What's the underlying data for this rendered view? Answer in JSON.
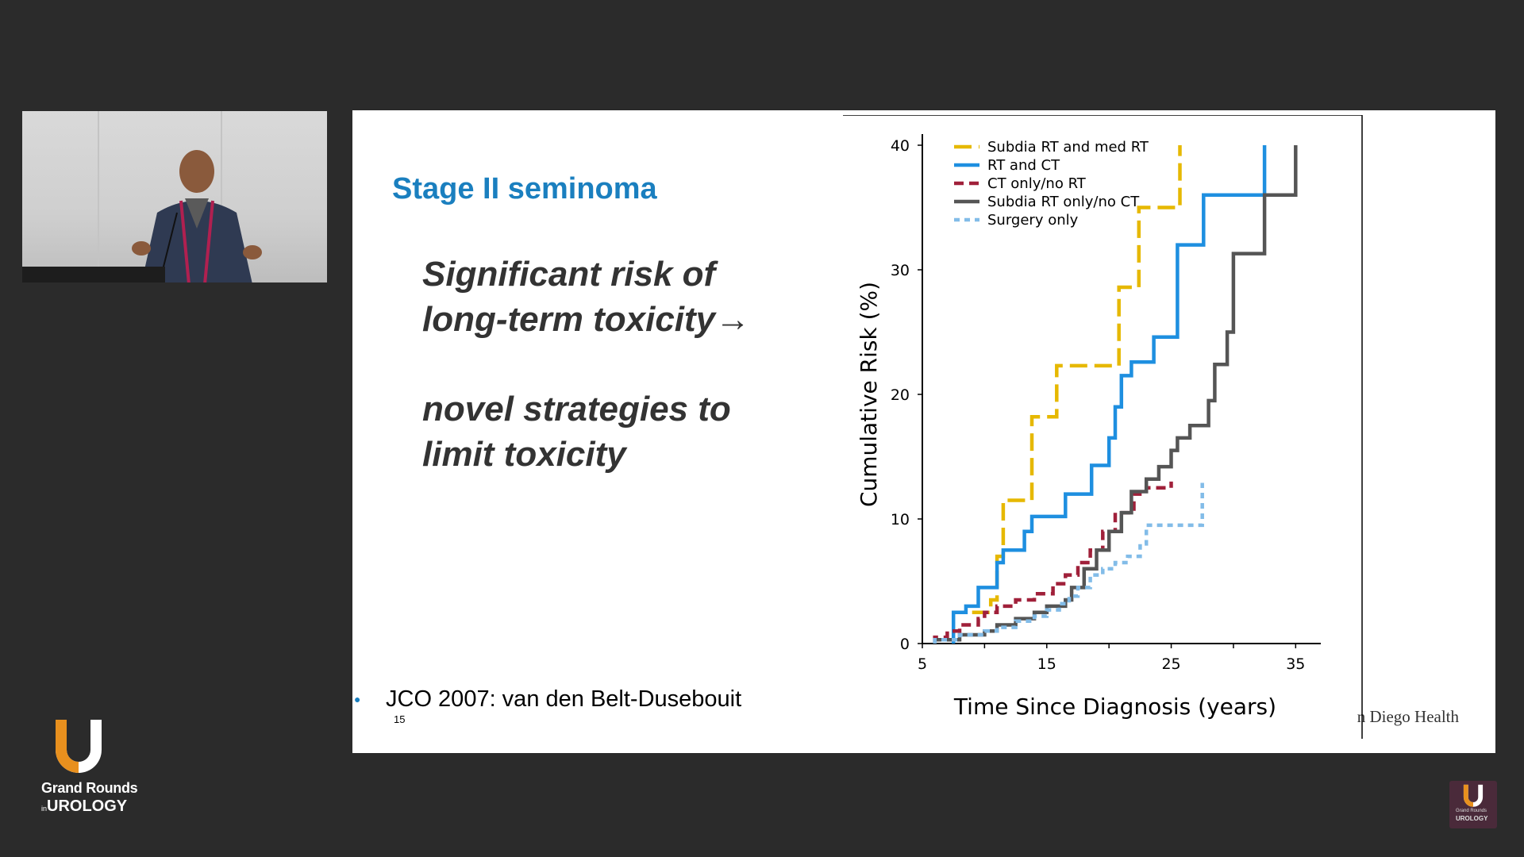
{
  "slide": {
    "title": "Stage II seminoma",
    "bullets": [
      "Significant risk of\nlong-term toxicity→",
      "novel strategies to\nlimit toxicity"
    ],
    "citation": "JCO 2007: van den Belt-Dusebouit",
    "page_number": "15",
    "institution_logo_text": "n Diego Health"
  },
  "branding": {
    "logo_line1": "Grand Rounds",
    "logo_line2_prefix": "in",
    "logo_line2": "UROLOGY",
    "mini_line1": "Grand Rounds",
    "mini_line2": "UROLOGY",
    "orange": "#e8901e",
    "white": "#ffffff"
  },
  "chart_data": {
    "type": "line",
    "step": true,
    "xlabel": "Time Since Diagnosis (years)",
    "ylabel": "Cumulative Risk (%)",
    "xlim": [
      5,
      36
    ],
    "ylim": [
      0,
      40
    ],
    "xticks": [
      5,
      15,
      25,
      35
    ],
    "yticks": [
      0,
      10,
      20,
      30,
      40
    ],
    "legend_position": "top-left",
    "series": [
      {
        "name": "Subdia RT and med RT",
        "color": "#e6b800",
        "style": "dashed-long",
        "points": [
          [
            9,
            2.5
          ],
          [
            10.5,
            2.5
          ],
          [
            10.5,
            3.5
          ],
          [
            11,
            3.5
          ],
          [
            11,
            7
          ],
          [
            11.5,
            7
          ],
          [
            11.5,
            11.5
          ],
          [
            13.8,
            11.5
          ],
          [
            13.8,
            18.2
          ],
          [
            15.8,
            18.2
          ],
          [
            15.8,
            22.3
          ],
          [
            20.8,
            22.3
          ],
          [
            20.8,
            28.6
          ],
          [
            22.4,
            28.6
          ],
          [
            22.4,
            35
          ],
          [
            25.7,
            35
          ],
          [
            25.7,
            40
          ]
        ]
      },
      {
        "name": "RT and CT",
        "color": "#1e8fe0",
        "style": "solid",
        "points": [
          [
            7.5,
            0
          ],
          [
            7.5,
            2.5
          ],
          [
            8.5,
            2.5
          ],
          [
            8.5,
            3
          ],
          [
            9.5,
            3
          ],
          [
            9.5,
            4.5
          ],
          [
            11,
            4.5
          ],
          [
            11,
            6.5
          ],
          [
            11.5,
            6.5
          ],
          [
            11.5,
            7.5
          ],
          [
            13.2,
            7.5
          ],
          [
            13.2,
            9
          ],
          [
            13.8,
            9
          ],
          [
            13.8,
            10.2
          ],
          [
            16.5,
            10.2
          ],
          [
            16.5,
            12
          ],
          [
            18.6,
            12
          ],
          [
            18.6,
            14.3
          ],
          [
            20,
            14.3
          ],
          [
            20,
            16.5
          ],
          [
            20.5,
            16.5
          ],
          [
            20.5,
            19
          ],
          [
            21,
            19
          ],
          [
            21,
            21.5
          ],
          [
            21.8,
            21.5
          ],
          [
            21.8,
            22.6
          ],
          [
            23.6,
            22.6
          ],
          [
            23.6,
            24.6
          ],
          [
            25.5,
            24.6
          ],
          [
            25.5,
            32
          ],
          [
            27.6,
            32
          ],
          [
            27.6,
            36
          ],
          [
            32.5,
            36
          ],
          [
            32.5,
            40
          ]
        ]
      },
      {
        "name": "CT only/no RT",
        "color": "#a0203a",
        "style": "dashed",
        "points": [
          [
            6,
            0
          ],
          [
            6,
            0.5
          ],
          [
            7,
            0.5
          ],
          [
            7,
            1
          ],
          [
            8,
            1
          ],
          [
            8,
            1.5
          ],
          [
            9.5,
            1.5
          ],
          [
            9.5,
            2
          ],
          [
            10,
            2
          ],
          [
            10,
            2.5
          ],
          [
            11,
            2.5
          ],
          [
            11,
            3
          ],
          [
            12.5,
            3
          ],
          [
            12.5,
            3.5
          ],
          [
            14,
            3.5
          ],
          [
            14,
            4
          ],
          [
            15.5,
            4
          ],
          [
            15.5,
            4.8
          ],
          [
            16.5,
            4.8
          ],
          [
            16.5,
            5.5
          ],
          [
            17.5,
            5.5
          ],
          [
            17.5,
            6.5
          ],
          [
            18.5,
            6.5
          ],
          [
            18.5,
            7.5
          ],
          [
            19.5,
            7.5
          ],
          [
            19.5,
            9
          ],
          [
            20.5,
            9
          ],
          [
            20.5,
            10.5
          ],
          [
            22,
            10.5
          ],
          [
            22,
            12
          ],
          [
            23,
            12
          ],
          [
            23,
            12.5
          ],
          [
            25,
            12.5
          ],
          [
            25,
            13
          ]
        ]
      },
      {
        "name": "Subdia RT only/no CT",
        "color": "#555555",
        "style": "solid",
        "points": [
          [
            6,
            0
          ],
          [
            6,
            0.3
          ],
          [
            8,
            0.3
          ],
          [
            8,
            0.7
          ],
          [
            10,
            0.7
          ],
          [
            10,
            1
          ],
          [
            11,
            1
          ],
          [
            11,
            1.5
          ],
          [
            12.5,
            1.5
          ],
          [
            12.5,
            2
          ],
          [
            14,
            2
          ],
          [
            14,
            2.5
          ],
          [
            15,
            2.5
          ],
          [
            15,
            3
          ],
          [
            16.5,
            3
          ],
          [
            16.5,
            3.5
          ],
          [
            17,
            3.5
          ],
          [
            17,
            4.5
          ],
          [
            18,
            4.5
          ],
          [
            18,
            6
          ],
          [
            19,
            6
          ],
          [
            19,
            7.5
          ],
          [
            20,
            7.5
          ],
          [
            20,
            9
          ],
          [
            21,
            9
          ],
          [
            21,
            10.5
          ],
          [
            21.8,
            10.5
          ],
          [
            21.8,
            12.2
          ],
          [
            23,
            12.2
          ],
          [
            23,
            13.2
          ],
          [
            24,
            13.2
          ],
          [
            24,
            14.2
          ],
          [
            25,
            14.2
          ],
          [
            25,
            15.5
          ],
          [
            25.5,
            15.5
          ],
          [
            25.5,
            16.5
          ],
          [
            26.5,
            16.5
          ],
          [
            26.5,
            17.5
          ],
          [
            28,
            17.5
          ],
          [
            28,
            19.5
          ],
          [
            28.5,
            19.5
          ],
          [
            28.5,
            22.4
          ],
          [
            29.5,
            22.4
          ],
          [
            29.5,
            25
          ],
          [
            30,
            25
          ],
          [
            30,
            31.3
          ],
          [
            32.5,
            31.3
          ],
          [
            32.5,
            36
          ],
          [
            35,
            36
          ],
          [
            35,
            40
          ]
        ]
      },
      {
        "name": "Surgery only",
        "color": "#82bce8",
        "style": "dotted",
        "points": [
          [
            6,
            0
          ],
          [
            6,
            0.3
          ],
          [
            8,
            0.3
          ],
          [
            8,
            0.7
          ],
          [
            10,
            0.7
          ],
          [
            10,
            1
          ],
          [
            11,
            1
          ],
          [
            11,
            1.3
          ],
          [
            12.5,
            1.3
          ],
          [
            12.5,
            1.8
          ],
          [
            14,
            1.8
          ],
          [
            14,
            2.2
          ],
          [
            15,
            2.2
          ],
          [
            15,
            2.7
          ],
          [
            16,
            2.7
          ],
          [
            16,
            3.2
          ],
          [
            16.8,
            3.2
          ],
          [
            16.8,
            3.8
          ],
          [
            17.5,
            3.8
          ],
          [
            17.5,
            4.5
          ],
          [
            18.5,
            4.5
          ],
          [
            18.5,
            5.5
          ],
          [
            19.5,
            5.5
          ],
          [
            19.5,
            6
          ],
          [
            20.5,
            6
          ],
          [
            20.5,
            6.5
          ],
          [
            21.5,
            6.5
          ],
          [
            21.5,
            7
          ],
          [
            22.5,
            7
          ],
          [
            22.5,
            8
          ],
          [
            23,
            8
          ],
          [
            23,
            9.5
          ],
          [
            27.5,
            9.5
          ],
          [
            27.5,
            12.9
          ]
        ]
      }
    ]
  }
}
